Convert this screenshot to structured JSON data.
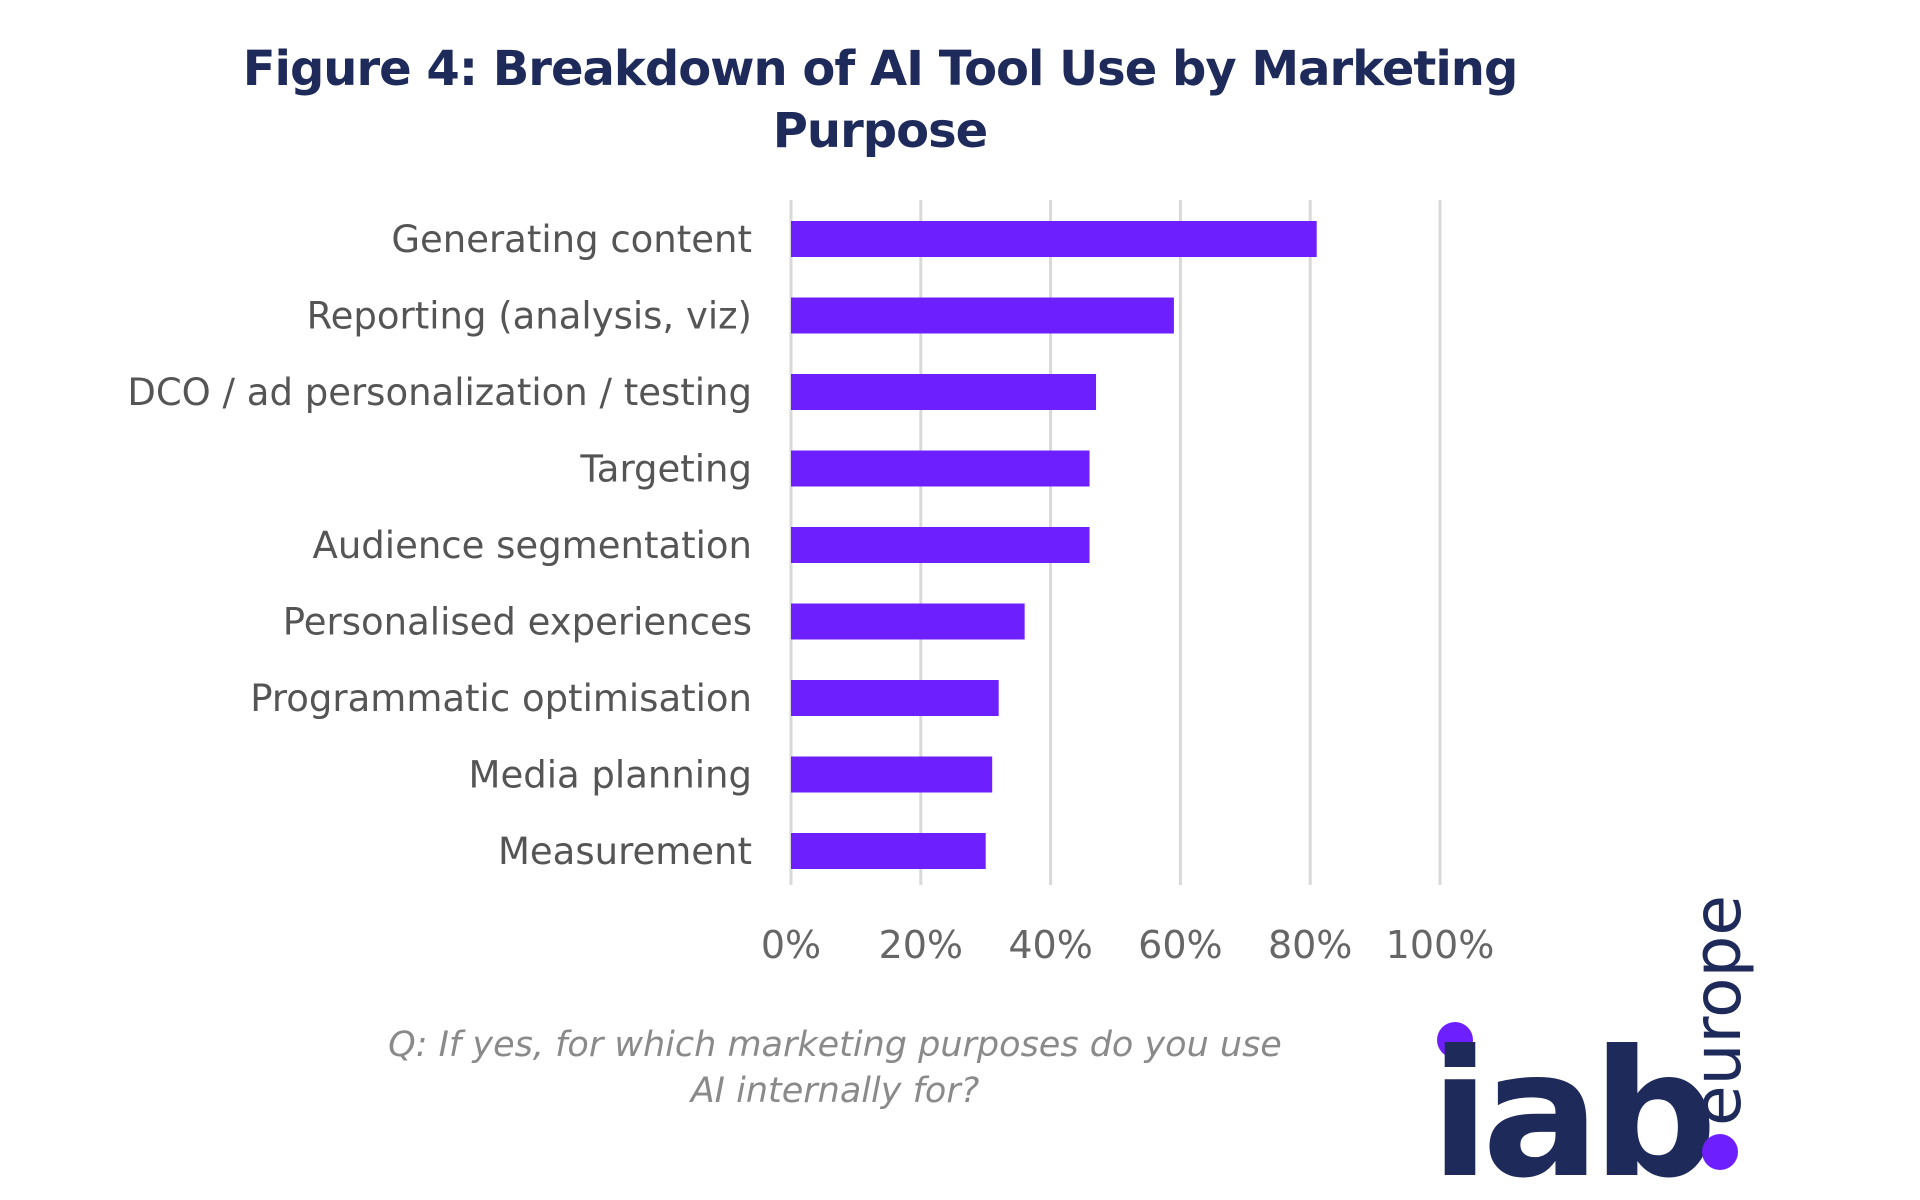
{
  "chart_data": {
    "type": "bar",
    "orientation": "horizontal",
    "title": "Figure 4: Breakdown of AI Tool Use by Marketing Purpose",
    "categories": [
      "Generating content",
      "Reporting (analysis, viz)",
      "DCO / ad personalization / testing",
      "Targeting",
      "Audience segmentation",
      "Personalised experiences",
      "Programmatic optimisation",
      "Media planning",
      "Measurement"
    ],
    "values": [
      81,
      59,
      47,
      46,
      46,
      36,
      32,
      31,
      30
    ],
    "xlim": [
      0,
      100
    ],
    "xticks": [
      "0%",
      "20%",
      "40%",
      "60%",
      "80%",
      "100%"
    ],
    "grid": true,
    "bar_color": "#6e1ffd"
  },
  "caption": "Q: If yes, for which marketing purposes do you use AI internally for?",
  "logo": {
    "text": "iab.europe",
    "dot_color": "#6e1ffd",
    "text_color": "#1e2a5a"
  }
}
